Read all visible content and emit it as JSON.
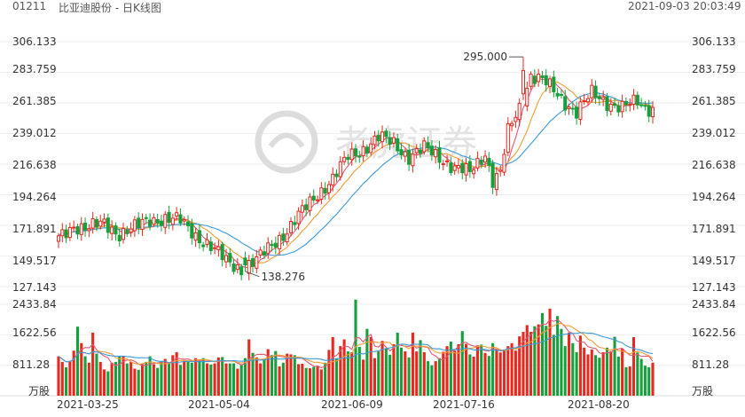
{
  "header": {
    "code": "01211",
    "name": "比亚迪股份 - 日K线图",
    "datetime": "2021-09-03 20:03:49"
  },
  "watermark": "老虎证券",
  "colors": {
    "up": "#e8281e",
    "down": "#16a03c",
    "ma5": "#e15874",
    "ma10": "#f39c33",
    "ma20": "#3a9ad9",
    "grid": "#eeeeee"
  },
  "chart_data": {
    "type": "candlestick",
    "price_axis": {
      "ticks": [
        "306.133",
        "283.759",
        "261.385",
        "239.012",
        "216.638",
        "194.264",
        "171.891",
        "149.517",
        "127.143"
      ],
      "min": 127.143,
      "max": 306.133
    },
    "volume_axis": {
      "ticks": [
        "2433.84",
        "1622.56",
        "811.28"
      ],
      "unit": "万股",
      "max": 2433.84
    },
    "x_labels": [
      "2021-03-25",
      "2021-05-04",
      "2021-06-09",
      "2021-07-16",
      "2021-08-20"
    ],
    "annotations": {
      "high": "295.000",
      "low": "138.276"
    },
    "high_value": 295.0,
    "low_value": 138.276,
    "price_keys": [
      [
        0,
        162
      ],
      [
        4,
        172
      ],
      [
        8,
        170
      ],
      [
        12,
        173
      ],
      [
        16,
        166
      ],
      [
        20,
        170
      ],
      [
        24,
        176
      ],
      [
        28,
        177
      ],
      [
        32,
        175
      ],
      [
        36,
        165
      ],
      [
        40,
        156
      ],
      [
        44,
        146
      ],
      [
        48,
        140
      ],
      [
        52,
        146
      ],
      [
        56,
        158
      ],
      [
        60,
        168
      ],
      [
        64,
        182
      ],
      [
        68,
        195
      ],
      [
        72,
        206
      ],
      [
        76,
        222
      ],
      [
        80,
        228
      ],
      [
        84,
        236
      ],
      [
        88,
        232
      ],
      [
        92,
        222
      ],
      [
        96,
        228
      ],
      [
        100,
        222
      ],
      [
        104,
        214
      ],
      [
        108,
        210
      ],
      [
        112,
        225
      ],
      [
        114,
        205
      ],
      [
        116,
        210
      ],
      [
        118,
        240
      ],
      [
        121,
        258
      ],
      [
        124,
        282
      ],
      [
        127,
        278
      ],
      [
        130,
        270
      ],
      [
        133,
        262
      ],
      [
        136,
        255
      ],
      [
        140,
        268
      ],
      [
        144,
        262
      ],
      [
        148,
        258
      ],
      [
        152,
        262
      ],
      [
        154,
        258
      ]
    ],
    "volumes": [
      1050,
      900,
      760,
      930,
      1200,
      1840,
      1400,
      1050,
      880,
      1680,
      1120,
      900,
      700,
      650,
      880,
      900,
      1050,
      1050,
      860,
      900,
      720,
      690,
      840,
      900,
      1050,
      840,
      740,
      920,
      980,
      880,
      1080,
      1160,
      820,
      930,
      900,
      880,
      1000,
      960,
      1000,
      860,
      830,
      860,
      1020,
      1030,
      860,
      860,
      860,
      720,
      820,
      1000,
      1500,
      1140,
      1020,
      860,
      980,
      1240,
      1080,
      1190,
      780,
      880,
      1120,
      1100,
      1080,
      840,
      850,
      740,
      730,
      770,
      800,
      700,
      880,
      1220,
      1560,
      1000,
      1320,
      1500,
      1180,
      1160,
      2560,
      1300,
      960,
      1780,
      1560,
      1000,
      1180,
      1460,
      1260,
      1090,
      1370,
      1680,
      1280,
      1180,
      1020,
      1680,
      1180,
      1480,
      1160,
      920,
      810,
      920,
      1000,
      1170,
      1320,
      1440,
      1200,
      1370,
      1720,
      1380,
      1100,
      1040,
      1340,
      1360,
      1140,
      1060,
      1400,
      1230,
      1150,
      1200,
      1320,
      1400,
      1200,
      1580,
      1700,
      1880,
      1700,
      1850,
      1900,
      2200,
      1860,
      2320,
      1620,
      2120,
      1780,
      1320,
      1680,
      1400,
      1160,
      1600,
      1280,
      1100,
      1230,
      1080,
      1010,
      1160,
      1280,
      1180,
      1570,
      1040,
      1250,
      760,
      780,
      1560,
      1150,
      980,
      800,
      760,
      880
    ]
  }
}
